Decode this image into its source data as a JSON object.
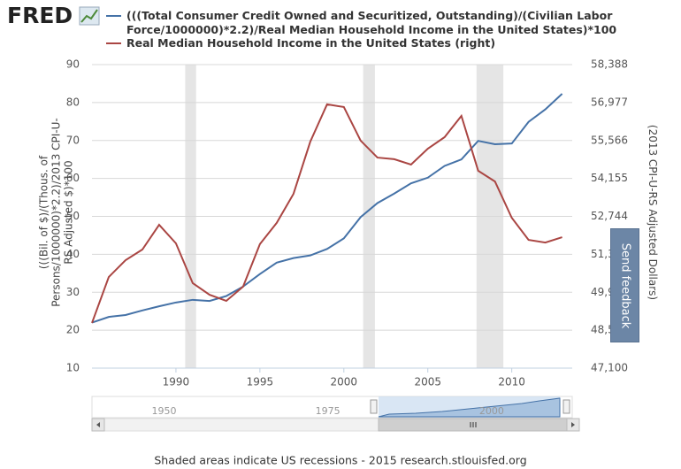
{
  "logo": "FRED",
  "feedback_button": "Send feedback",
  "chart_data": {
    "type": "line",
    "x": [
      1985,
      1986,
      1987,
      1988,
      1989,
      1990,
      1991,
      1992,
      1993,
      1994,
      1995,
      1996,
      1997,
      1998,
      1999,
      2000,
      2001,
      2002,
      2003,
      2004,
      2005,
      2006,
      2007,
      2008,
      2009,
      2010,
      2011,
      2012,
      2013
    ],
    "series": [
      {
        "name": "(((Total Consumer Credit Owned and Securitized, Outstanding)/(Civilian Labor Force/1000000)*2.2)/Real Median Household Income in the United States)*100",
        "color": "#4572a7",
        "axis": "y",
        "values": [
          22,
          23.5,
          24,
          25.2,
          26.3,
          27.3,
          28,
          27.7,
          29,
          31.5,
          34.8,
          37.8,
          39,
          39.7,
          41.4,
          44.2,
          49.8,
          53.5,
          56,
          58.7,
          60.2,
          63.3,
          65,
          69.9,
          69,
          69.2,
          74.9,
          78.2,
          82.3
        ]
      },
      {
        "name": "Real Median Household Income in the United States (right)",
        "color": "#aa4643",
        "axis": "y2",
        "values": [
          48780,
          50490,
          51115,
          51510,
          52430,
          51740,
          50260,
          49830,
          49600,
          50130,
          51710,
          52500,
          53580,
          55520,
          56910,
          56810,
          55560,
          54930,
          54870,
          54670,
          55260,
          55690,
          56480,
          54440,
          54040,
          52690,
          51870,
          51770,
          51970
        ]
      }
    ],
    "xlim": [
      1985,
      2013.6
    ],
    "xticks": [
      1990,
      1995,
      2000,
      2005,
      2010
    ],
    "ylim": [
      10,
      90
    ],
    "yticks": [
      10,
      20,
      30,
      40,
      50,
      60,
      70,
      80,
      90
    ],
    "y2lim": [
      47100,
      58388
    ],
    "y2ticks": [
      {
        "value": 47100,
        "label": "47,100"
      },
      {
        "value": 48511,
        "label": "48,511"
      },
      {
        "value": 49922,
        "label": "49,922"
      },
      {
        "value": 51333,
        "label": "51,333"
      },
      {
        "value": 52744,
        "label": "52,744"
      },
      {
        "value": 54155,
        "label": "54,155"
      },
      {
        "value": 55566,
        "label": "55,566"
      },
      {
        "value": 56977,
        "label": "56,977"
      },
      {
        "value": 58388,
        "label": "58,388"
      }
    ],
    "ylabel": "(((Bil. of $)/(Thous. of Persons/1000000)*2.2)/2013 CPI-U-RS Adjusted $)*100",
    "y2label": "(2013 CPI-U-RS Adjusted Dollars)",
    "recessions": [
      [
        1990.55,
        1991.2
      ],
      [
        2001.15,
        2001.85
      ],
      [
        2007.9,
        2009.5
      ]
    ],
    "grid": true,
    "navigator_xlim": [
      1939,
      2012.3
    ],
    "navigator_ticks": [
      1950,
      1975,
      2000
    ],
    "note": "Shaded areas indicate US recessions - 2015 research.stlouisfed.org"
  }
}
